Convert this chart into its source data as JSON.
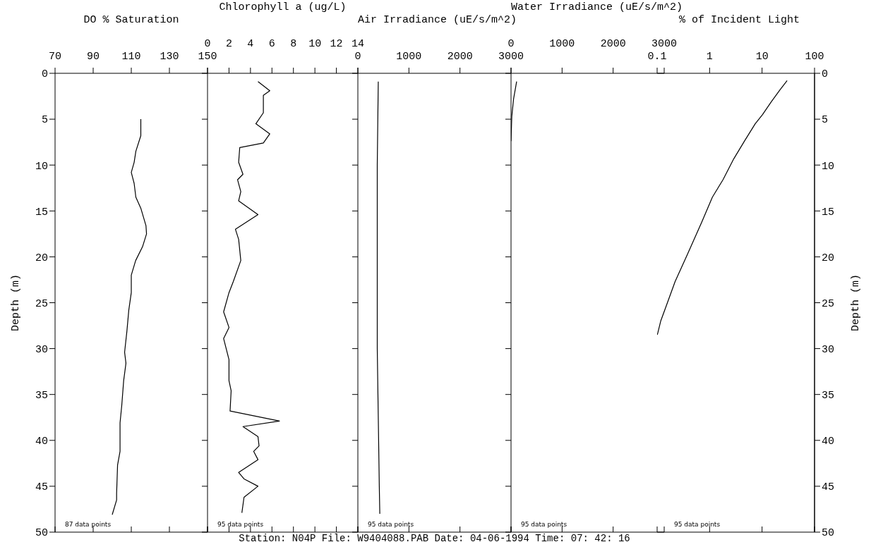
{
  "chart_data": [
    {
      "type": "line",
      "xlabel": "DO % Saturation",
      "ylabel": "Depth (m)",
      "color": "#000000",
      "xlim": [
        70,
        150
      ],
      "xticks": [
        70,
        90,
        110,
        130,
        150
      ],
      "ylim": [
        50,
        0
      ],
      "yticks": [
        0,
        5,
        10,
        15,
        20,
        25,
        30,
        35,
        40,
        45,
        50
      ],
      "annotations": [
        "87 data points"
      ],
      "x": [
        115,
        115,
        112.4,
        111.5,
        110,
        111.5,
        112.4,
        115,
        117.7,
        118,
        115.9,
        112.3,
        110,
        110,
        108.7,
        107.7,
        106.5,
        107.2,
        106,
        105,
        104.1,
        104.1,
        102.8,
        102.3,
        102.3,
        100
      ],
      "values": [
        5,
        6.8,
        8.5,
        9.7,
        10.8,
        12,
        13.5,
        14.7,
        16.6,
        17.5,
        18.9,
        20.4,
        22,
        23.9,
        25.8,
        28.1,
        30.4,
        31.6,
        33.5,
        36.2,
        38.1,
        41.2,
        42.7,
        45.8,
        46.5,
        48.1
      ]
    },
    {
      "type": "line",
      "xlabel": "Chlorophyll a (ug/L)",
      "color": "#000000",
      "xlim": [
        0,
        14
      ],
      "xticks": [
        0,
        2,
        4,
        6,
        8,
        10,
        12,
        14
      ],
      "ylim": [
        50,
        0
      ],
      "yticks": [
        0,
        5,
        10,
        15,
        20,
        25,
        30,
        35,
        40,
        45,
        50
      ],
      "tick_labels": "x",
      "annotations": [
        "95 data points"
      ],
      "x": [
        4.7,
        5.8,
        5.2,
        5.2,
        4.5,
        5.8,
        5.2,
        3,
        2.9,
        3.3,
        2.8,
        3.1,
        2.9,
        4.7,
        2.6,
        2.9,
        3.1,
        2.4,
        2,
        1.5,
        2,
        1.5,
        2,
        2,
        2.2,
        2.1,
        6.7,
        3.3,
        4.7,
        4.8,
        4.3,
        4.7,
        2.9,
        3.4,
        4.7,
        3.4,
        3.2
      ],
      "values": [
        0.9,
        1.9,
        2.4,
        4.3,
        5.5,
        6.6,
        7.6,
        8.1,
        9.7,
        11,
        11.6,
        12.9,
        13.9,
        15.4,
        17,
        18.1,
        20.4,
        22.7,
        23.9,
        26,
        27.7,
        28.9,
        31.2,
        33.5,
        34.6,
        36.8,
        37.9,
        38.5,
        39.6,
        40.6,
        41.2,
        42.1,
        43.5,
        44.2,
        45,
        46.2,
        47.9
      ]
    },
    {
      "type": "line",
      "xlabel": "Air Irradiance (uE/s/m^2)",
      "color": "#000000",
      "xlim": [
        0,
        3000
      ],
      "xticks": [
        0,
        1000,
        2000,
        3000
      ],
      "ylim": [
        50,
        0
      ],
      "yticks": [
        0,
        5,
        10,
        15,
        20,
        25,
        30,
        35,
        40,
        45,
        50
      ],
      "tick_labels": "x",
      "annotations": [
        "95 data points",
        "Station:  N04P File:  W9404088.PAB Date:  04-06-1994 Time:  07: 42: 16"
      ],
      "x": [
        400,
        380,
        380,
        420,
        430
      ],
      "values": [
        0.9,
        10,
        30,
        45,
        48
      ]
    },
    {
      "type": "line",
      "xlabel": "Water Irradiance (uE/s/m^2)",
      "color": "#000000",
      "xlim": [
        0,
        3000
      ],
      "xticks": [
        0,
        1000,
        2000,
        3000
      ],
      "ylim": [
        50,
        0
      ],
      "yticks": [
        0,
        5,
        10,
        15,
        20,
        25,
        30,
        35,
        40,
        45,
        50
      ],
      "tick_labels": "x",
      "annotations": [
        "95 data points"
      ],
      "x": [
        110,
        50,
        15,
        0
      ],
      "values": [
        0.9,
        2.8,
        4.7,
        7.4
      ]
    },
    {
      "type": "line",
      "xlabel": "% of Incident Light",
      "ylabel": "Depth (m)",
      "color": "#000000",
      "log": "x",
      "xlim": [
        0.1,
        100
      ],
      "xticks": [
        0.1,
        1,
        10,
        100
      ],
      "ylim": [
        50,
        0
      ],
      "yticks": [
        0,
        5,
        10,
        15,
        20,
        25,
        30,
        35,
        40,
        45,
        50
      ],
      "annotations": [
        "95 data points"
      ],
      "x": [
        30,
        22,
        15,
        10.2,
        7.4,
        4.6,
        2.9,
        1.8,
        1.13,
        0.71,
        0.38,
        0.22,
        0.148,
        0.117,
        0.103,
        0.1
      ],
      "values": [
        0.8,
        1.8,
        3.1,
        4.5,
        5.5,
        7.4,
        9.3,
        11.6,
        13.5,
        16.2,
        19.7,
        22.7,
        25.4,
        27,
        28.3,
        28.5
      ]
    }
  ]
}
